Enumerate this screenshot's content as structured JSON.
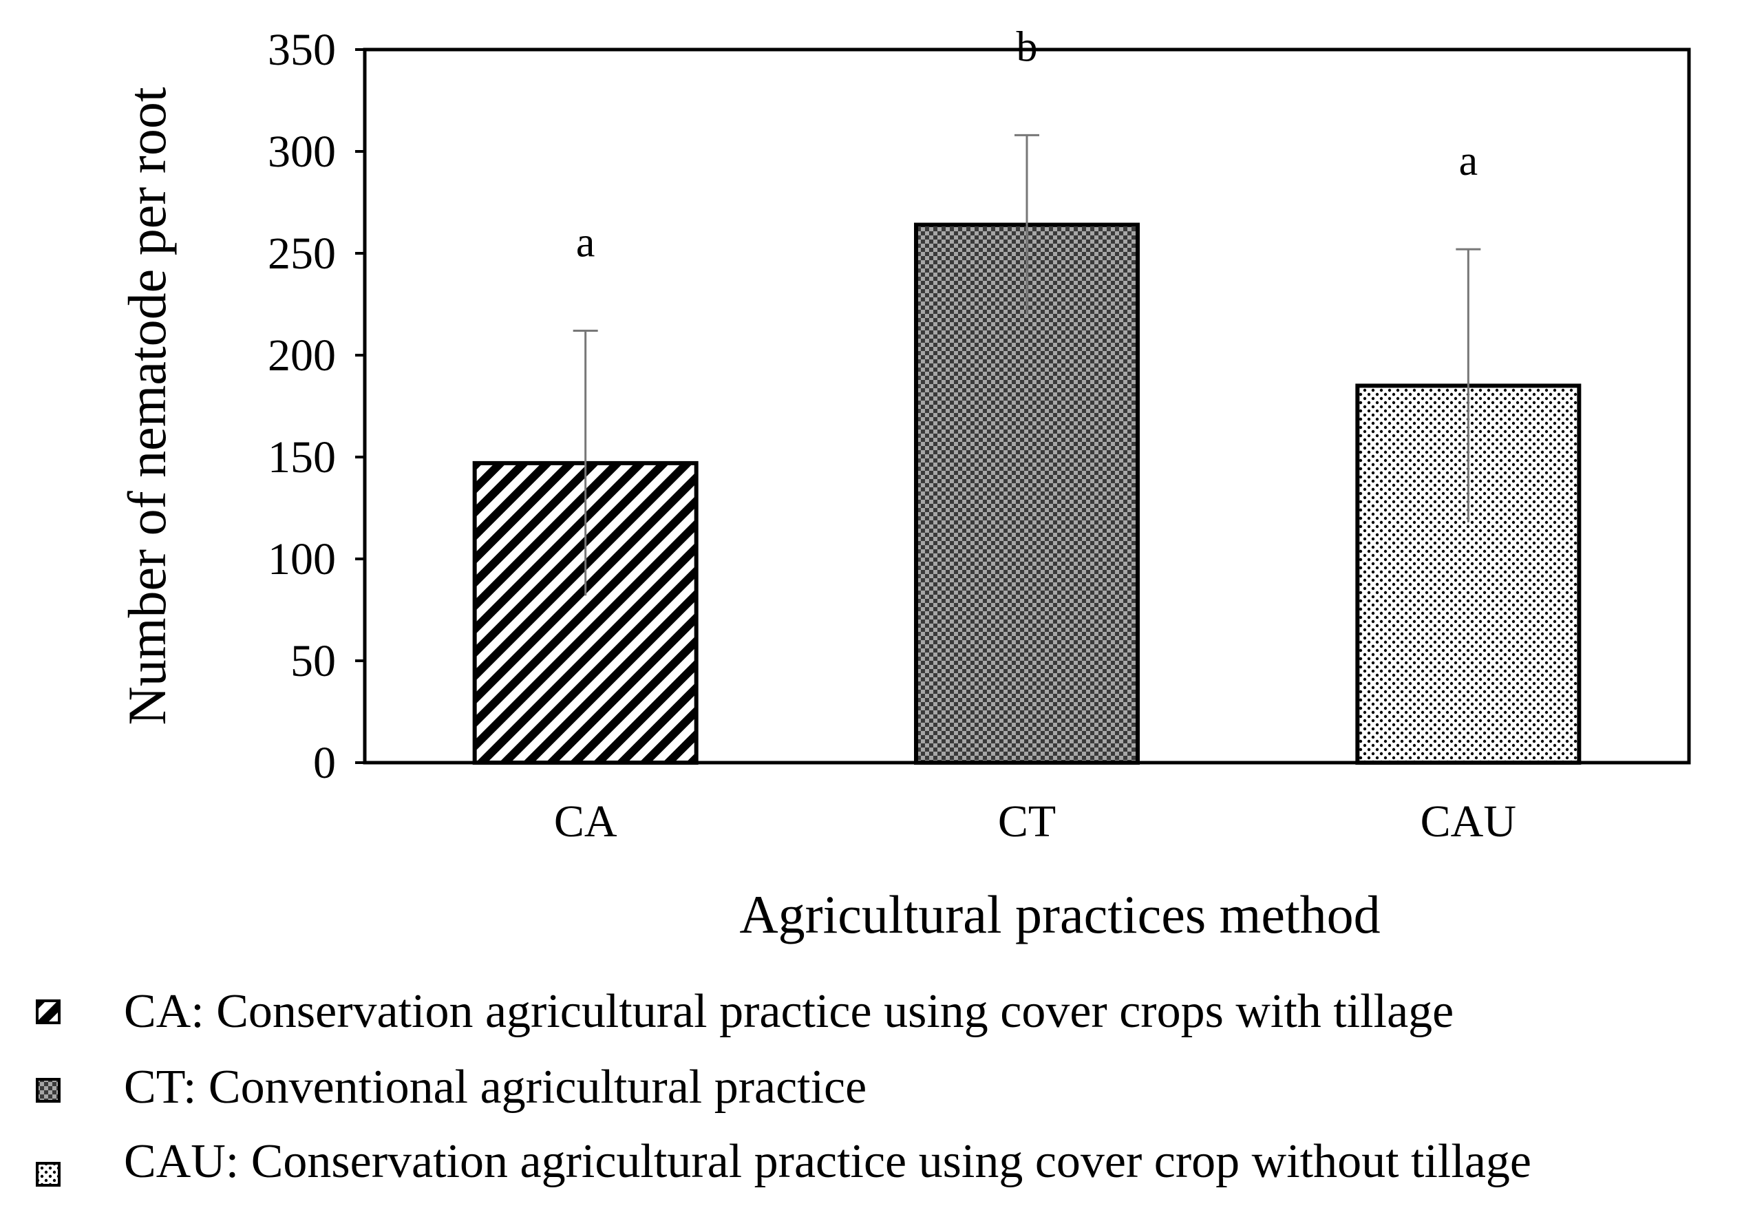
{
  "chart_data": {
    "type": "bar",
    "categories": [
      "CA",
      "CT",
      "CAU"
    ],
    "values": [
      147,
      264,
      185
    ],
    "errors": [
      65,
      44,
      67
    ],
    "significance": [
      "a",
      "b",
      "a"
    ],
    "patterns": [
      "diagonal-stripes",
      "dense-dots",
      "sparse-dots"
    ],
    "xlabel": "Agricultural practices method",
    "ylabel": "Number of nematode per root",
    "ylim": [
      0,
      350
    ],
    "yticks": [
      0,
      50,
      100,
      150,
      200,
      250,
      300,
      350
    ],
    "grid": false
  },
  "legend": [
    {
      "text": "CA: Conservation agricultural practice using cover crops with tillage",
      "pattern": "diagonal-stripes"
    },
    {
      "text": "CT: Conventional agricultural practice",
      "pattern": "dense-dots"
    },
    {
      "text": "CAU: Conservation agricultural practice using cover crop without tillage",
      "pattern": "sparse-dots"
    }
  ],
  "colors": {
    "ink": "#000000",
    "background": "#ffffff"
  }
}
